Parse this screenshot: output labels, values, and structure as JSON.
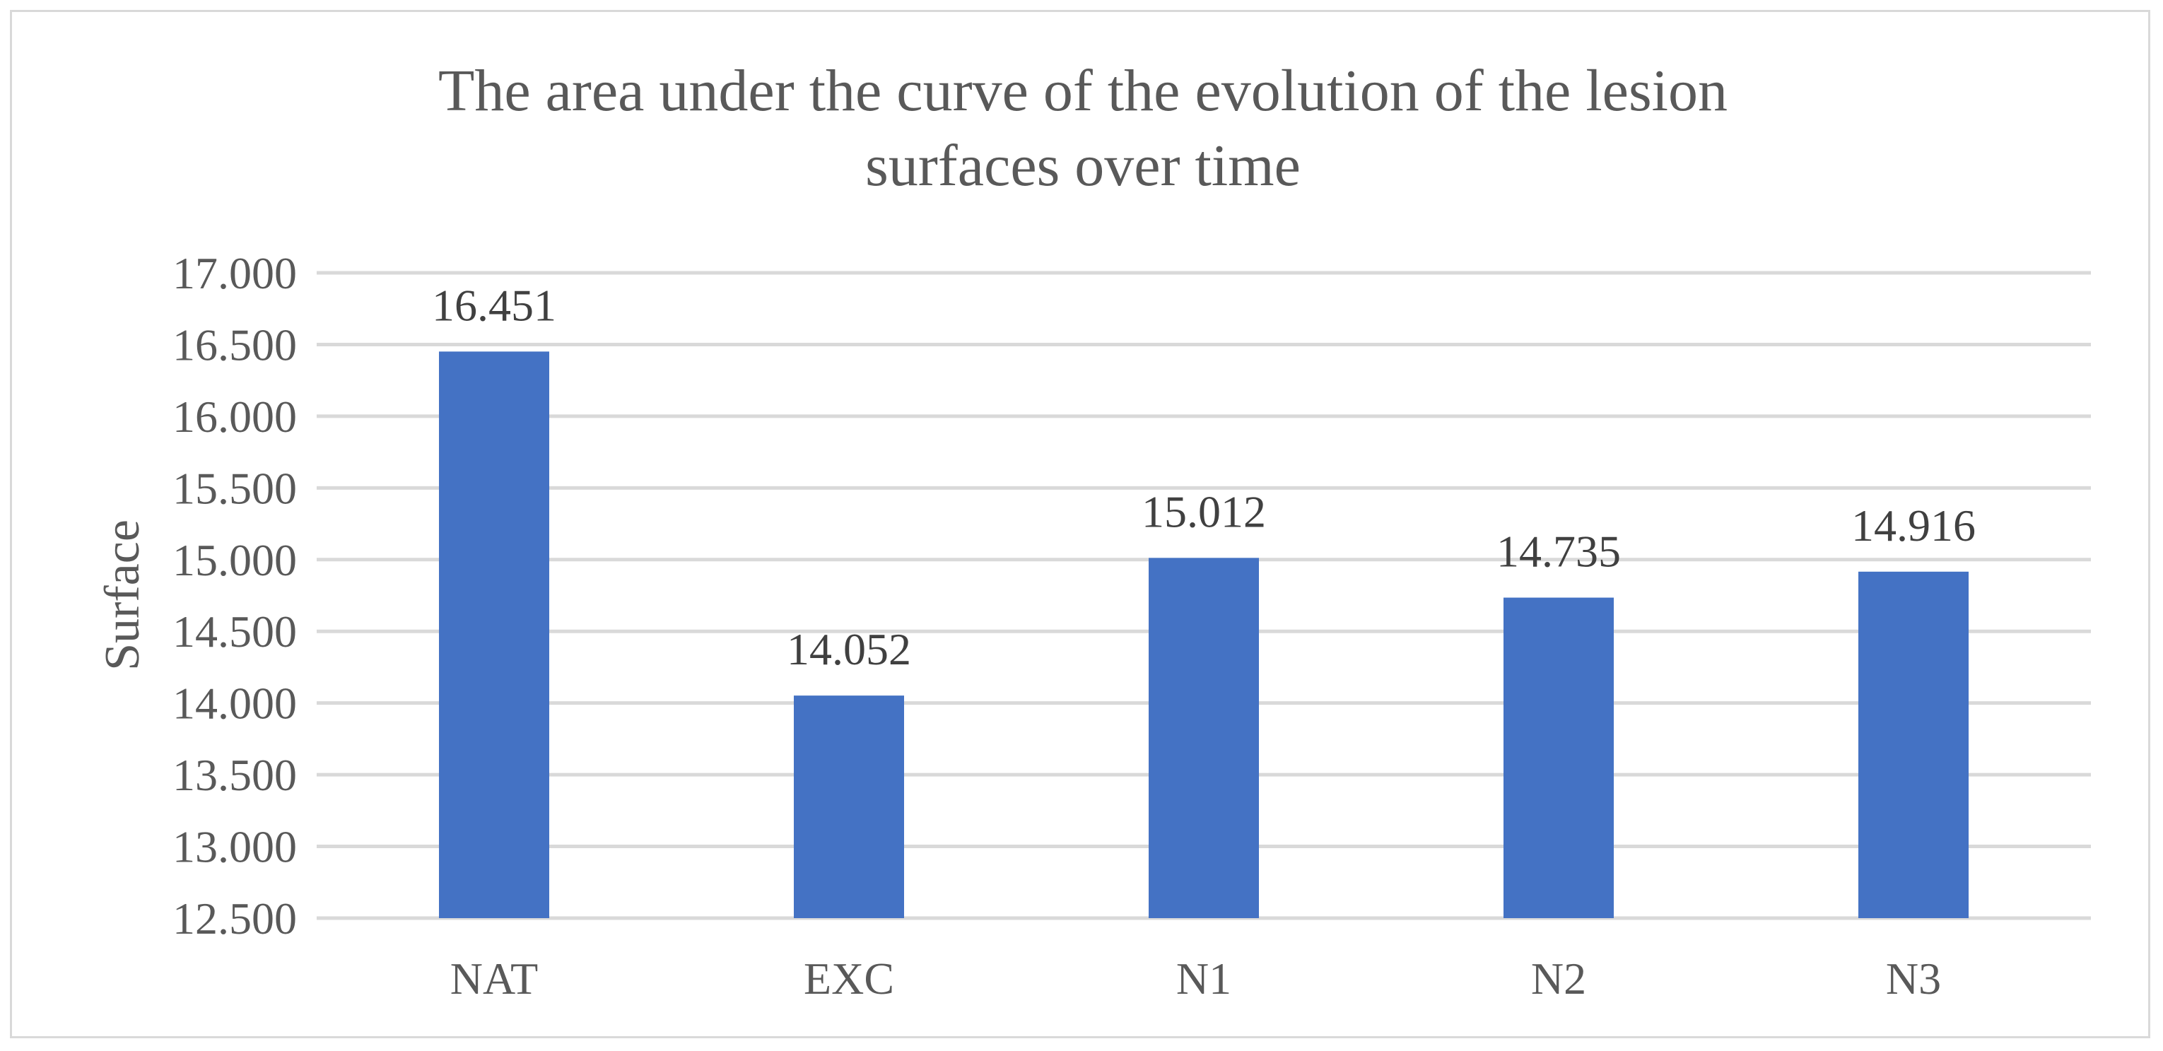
{
  "chart_data": {
    "type": "bar",
    "title_lines": [
      "The area under the curve of the evolution of the lesion",
      "surfaces over time"
    ],
    "xlabel": "",
    "ylabel": "Surface",
    "categories": [
      "NAT",
      "EXC",
      "N1",
      "N2",
      "N3"
    ],
    "values": [
      16.451,
      14.052,
      15.012,
      14.735,
      14.916
    ],
    "data_labels": [
      "16.451",
      "14.052",
      "15.012",
      "14.735",
      "14.916"
    ],
    "ylim": [
      12.5,
      17.0
    ],
    "yticks": [
      12.5,
      13.0,
      13.5,
      14.0,
      14.5,
      15.0,
      15.5,
      16.0,
      16.5,
      17.0
    ],
    "ytick_labels": [
      "12.500",
      "13.000",
      "13.500",
      "14.000",
      "14.500",
      "15.000",
      "15.500",
      "16.000",
      "16.500",
      "17.000"
    ],
    "grid": true,
    "legend": "none",
    "colors": {
      "bar": "#4472c4",
      "grid": "#d9d9d9",
      "text": "#595959",
      "data_label": "#404040",
      "frame": "#d9d9d9"
    }
  }
}
